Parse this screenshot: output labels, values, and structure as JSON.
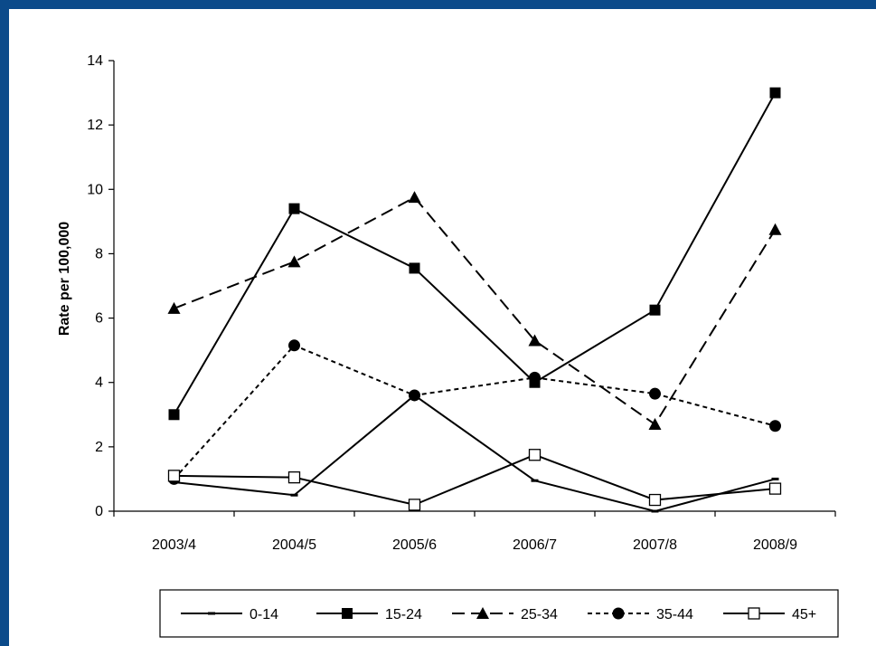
{
  "chart_data": {
    "type": "line",
    "title": "",
    "xlabel": "",
    "ylabel": "Rate per 100,000",
    "ylim": [
      0,
      14
    ],
    "yticks": [
      0,
      2,
      4,
      6,
      8,
      10,
      12,
      14
    ],
    "categories": [
      "2003/4",
      "2004/5",
      "2005/6",
      "2006/7",
      "2007/8",
      "2008/9"
    ],
    "grid": false,
    "legend_position": "bottom",
    "series": [
      {
        "name": "0-14",
        "values": [
          0.9,
          0.5,
          3.6,
          0.95,
          0.0,
          1.0
        ],
        "marker": "dash",
        "line": "solid"
      },
      {
        "name": "15-24",
        "values": [
          3.0,
          9.4,
          7.55,
          4.0,
          6.25,
          13.0
        ],
        "marker": "square-filled",
        "line": "solid"
      },
      {
        "name": "25-34",
        "values": [
          6.3,
          7.75,
          9.75,
          5.3,
          2.7,
          8.75
        ],
        "marker": "triangle-filled",
        "line": "longdash"
      },
      {
        "name": "35-44",
        "values": [
          1.0,
          5.15,
          3.6,
          4.15,
          3.65,
          2.65
        ],
        "marker": "circle-filled",
        "line": "shortdash"
      },
      {
        "name": "45+",
        "values": [
          1.1,
          1.05,
          0.2,
          1.75,
          0.35,
          0.7
        ],
        "marker": "square-open",
        "line": "solid"
      }
    ]
  }
}
